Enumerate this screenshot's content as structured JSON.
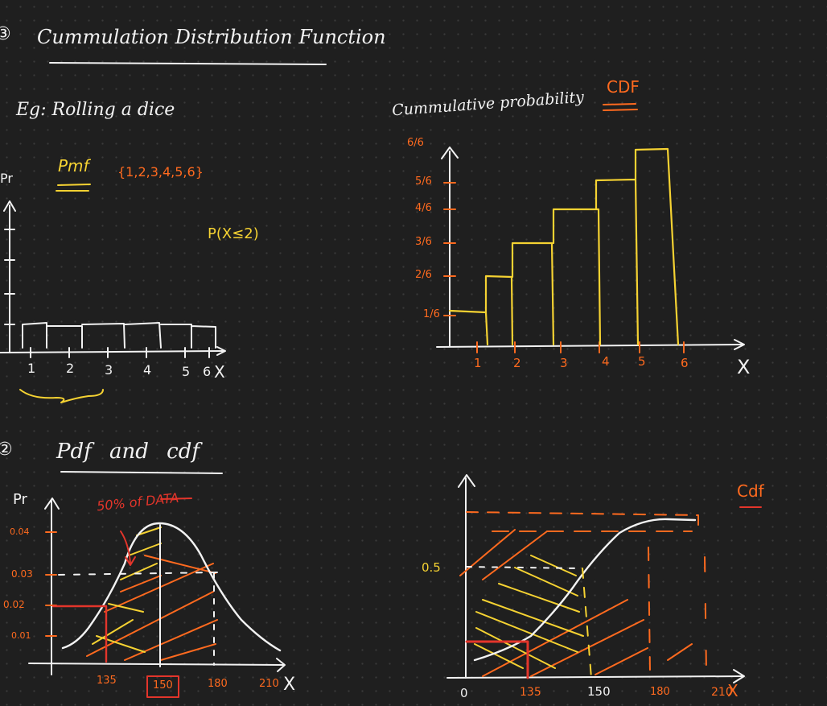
{
  "colors": {
    "background": "#1f1f1f",
    "white": "#f2f2f2",
    "orange": "#ff6a1f",
    "yellow": "#f5d232",
    "red": "#e3352b"
  },
  "heading": {
    "number": "③",
    "title": "Cummulation Distribution Function"
  },
  "example": {
    "text": "Eg: Rolling a dice",
    "pmf_label": "Pmf",
    "set": "{1,2,3,4,5,6}",
    "probability_note": "P(X≤2)"
  },
  "pmf_chart": {
    "y_label": "Pr",
    "x_ticks": [
      "1",
      "2",
      "3",
      "4",
      "5",
      "6"
    ],
    "x_axis": "X"
  },
  "cdf_chart": {
    "y_axis_title": "Cummulative probability",
    "tag": "CDF",
    "y_ticks": [
      "6/6",
      "5/6",
      "4/6",
      "3/6",
      "2/6",
      "1/6"
    ],
    "x_ticks": [
      "1",
      "2",
      "3",
      "4",
      "5",
      "6"
    ],
    "x_axis": "X"
  },
  "section2": {
    "number": "②",
    "title": "Pdf and cdf"
  },
  "pdf_chart": {
    "y_label": "Pr",
    "annotation": "50% of DATA",
    "y_ticks": [
      "0.04",
      "0.03",
      "0.02",
      "0.01"
    ],
    "x_ticks": [
      "135",
      "150",
      "180",
      "210"
    ],
    "x_axis": "X"
  },
  "cdf2_chart": {
    "tag": "Cdf",
    "y_tick": "0.5",
    "x_ticks": [
      "0",
      "135",
      "150",
      "180",
      "210"
    ],
    "x_axis": "X"
  }
}
